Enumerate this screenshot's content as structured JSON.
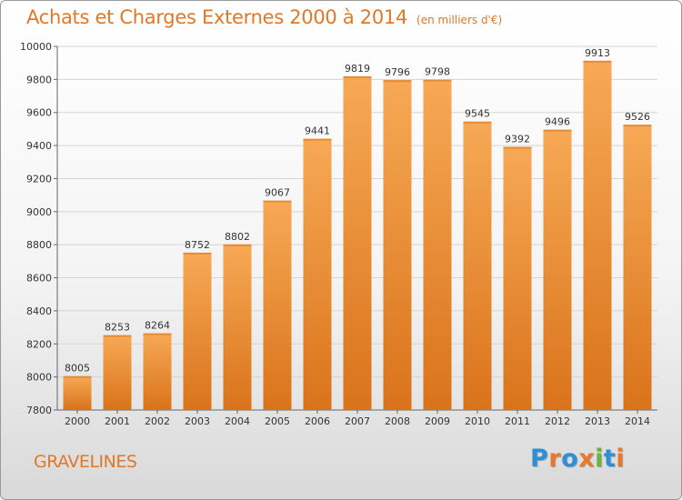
{
  "title": "Achats et Charges Externes 2000 à 2014",
  "unit": "(en milliers d'€)",
  "town": "GRAVELINES",
  "logo": {
    "text": "Proxiti",
    "letters": [
      {
        "ch": "P",
        "color": "#2e8fd6"
      },
      {
        "ch": "r",
        "color": "#e8792b"
      },
      {
        "ch": "o",
        "color": "#2e8fd6"
      },
      {
        "ch": "x",
        "color": "#e8792b"
      },
      {
        "ch": "i",
        "color": "#6bb53a"
      },
      {
        "ch": "t",
        "color": "#2e8fd6"
      },
      {
        "ch": "i",
        "color": "#e8792b"
      }
    ]
  },
  "chart_data": {
    "type": "bar",
    "title": "Achats et Charges Externes 2000 à 2014",
    "categories": [
      "2000",
      "2001",
      "2002",
      "2003",
      "2004",
      "2005",
      "2006",
      "2007",
      "2008",
      "2009",
      "2010",
      "2011",
      "2012",
      "2013",
      "2014"
    ],
    "values": [
      8005,
      8253,
      8264,
      8752,
      8802,
      9067,
      9441,
      9819,
      9796,
      9798,
      9545,
      9392,
      9496,
      9913,
      9526
    ],
    "ylim": [
      7800,
      10000
    ],
    "yticks": [
      7800,
      8000,
      8200,
      8400,
      8600,
      8800,
      9000,
      9200,
      9400,
      9600,
      9800,
      10000
    ],
    "grid": true,
    "bar_color_top": "#f7a955",
    "bar_color_bottom": "#d9731b",
    "data_labels": true
  }
}
